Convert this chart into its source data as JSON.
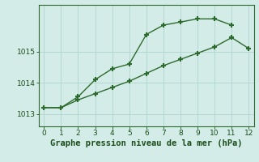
{
  "line1_x": [
    0,
    1,
    2,
    3,
    4,
    5,
    6,
    7,
    8,
    9,
    10,
    11
  ],
  "line1_y": [
    1013.2,
    1013.2,
    1013.55,
    1014.1,
    1014.45,
    1014.6,
    1015.55,
    1015.85,
    1015.95,
    1016.05,
    1016.05,
    1015.85
  ],
  "line2_x": [
    0,
    1,
    2,
    3,
    4,
    5,
    6,
    7,
    8,
    9,
    10,
    11,
    12
  ],
  "line2_y": [
    1013.2,
    1013.2,
    1013.45,
    1013.65,
    1013.85,
    1014.05,
    1014.3,
    1014.55,
    1014.75,
    1014.95,
    1015.15,
    1015.45,
    1015.1
  ],
  "line_color": "#2d6a2d",
  "marker": "+",
  "marker_size": 5,
  "marker_lw": 1.5,
  "bg_color": "#d4ece8",
  "grid_color": "#b0d4ce",
  "xlabel": "Graphe pression niveau de la mer (hPa)",
  "xlabel_color": "#1a4d1a",
  "xlabel_fontsize": 7.5,
  "ylim": [
    1012.6,
    1016.5
  ],
  "xlim": [
    -0.3,
    12.3
  ],
  "yticks": [
    1013,
    1014,
    1015
  ],
  "xticks": [
    0,
    1,
    2,
    3,
    4,
    5,
    6,
    7,
    8,
    9,
    10,
    11,
    12
  ],
  "tick_fontsize": 6.5,
  "tick_color": "#1a4d1a",
  "linewidth": 1.0,
  "spine_color": "#2d6a2d"
}
